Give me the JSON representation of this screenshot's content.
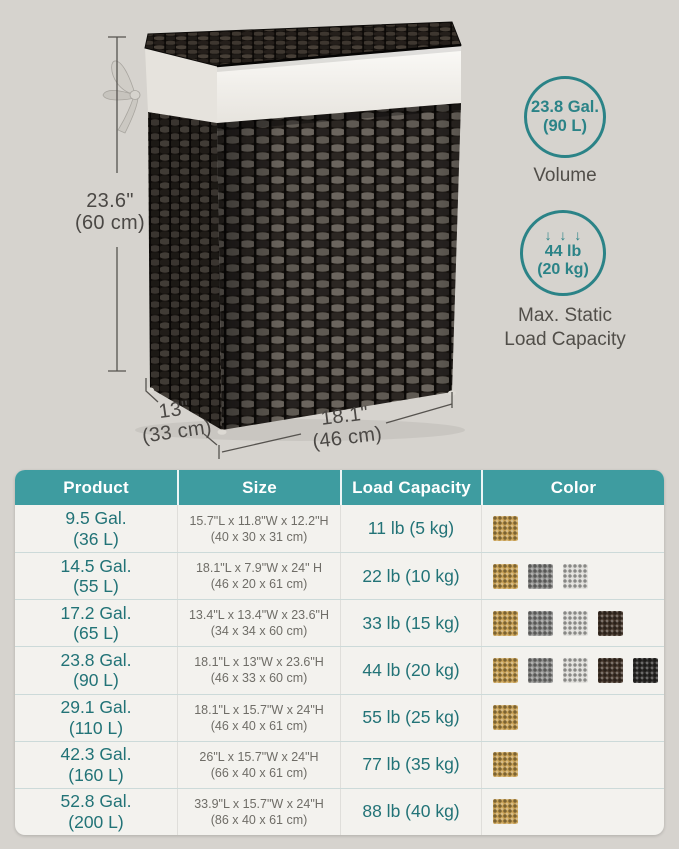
{
  "colors": {
    "page_bg": "#d6d3ce",
    "accent_teal": "#3e9ca0",
    "text_teal": "#227377",
    "badge_teal": "#2b8387",
    "dimension_text": "#4b4845",
    "size_text": "#6f6d67",
    "table_bg": "#f3f2ee"
  },
  "dimensions": {
    "height": {
      "value": "23.6\"",
      "metric": "(60 cm)"
    },
    "depth": {
      "value": "13\"",
      "metric": "(33 cm)"
    },
    "width": {
      "value": "18.1\"",
      "metric": "(46 cm)"
    }
  },
  "badges": {
    "volume": {
      "value": "23.8 Gal.",
      "metric": "(90 L)",
      "label": "Volume"
    },
    "load": {
      "arrows_icon": "↓ ↓ ↓",
      "value": "44 lb",
      "metric": "(20 kg)",
      "label_line1": "Max. Static",
      "label_line2": "Load Capacity"
    }
  },
  "table": {
    "headers": [
      "Product",
      "Size",
      "Load Capacity",
      "Color"
    ],
    "rows": [
      {
        "product": "9.5 Gal.",
        "product_metric": "(36 L)",
        "size_in": "15.7\"L x 11.8\"W x 12.2\"H",
        "size_cm": "(40 x 30 x 31 cm)",
        "load": "11 lb (5 kg)",
        "colors": [
          "camel"
        ]
      },
      {
        "product": "14.5 Gal.",
        "product_metric": "(55 L)",
        "size_in": "18.1\"L x 7.9\"W x 24\" H",
        "size_cm": "(46 x 20 x 61 cm)",
        "load": "22 lb (10 kg)",
        "colors": [
          "camel",
          "gray",
          "light-gray"
        ]
      },
      {
        "product": "17.2 Gal.",
        "product_metric": "(65 L)",
        "size_in": "13.4\"L x 13.4\"W x 23.6\"H",
        "size_cm": "(34 x 34 x 60 cm)",
        "load": "33 lb (15 kg)",
        "colors": [
          "camel",
          "gray",
          "light-gray",
          "brown"
        ]
      },
      {
        "product": "23.8 Gal.",
        "product_metric": "(90 L)",
        "size_in": "18.1\"L x 13\"W x 23.6\"H",
        "size_cm": "(46 x 33 x 60 cm)",
        "load": "44 lb (20 kg)",
        "colors": [
          "camel",
          "gray",
          "light-gray",
          "brown",
          "black"
        ]
      },
      {
        "product": "29.1 Gal.",
        "product_metric": "(110 L)",
        "size_in": "18.1\"L x 15.7\"W x 24\"H",
        "size_cm": "(46 x 40 x 61 cm)",
        "load": "55 lb (25 kg)",
        "colors": [
          "camel"
        ]
      },
      {
        "product": "42.3 Gal.",
        "product_metric": "(160 L)",
        "size_in": "26\"L x 15.7\"W x 24\"H",
        "size_cm": "(66 x 40 x 61 cm)",
        "load": "77 lb (35 kg)",
        "colors": [
          "camel"
        ]
      },
      {
        "product": "52.8 Gal.",
        "product_metric": "(200 L)",
        "size_in": "33.9\"L x 15.7\"W x 24\"H",
        "size_cm": "(86 x 40 x 61 cm)",
        "load": "88 lb (40 kg)",
        "colors": [
          "camel"
        ]
      }
    ]
  },
  "swatch_colors": {
    "camel": "#c79f52",
    "gray": "#8e8e8c",
    "light-gray": "#dcdbd7",
    "brown": "#43352a",
    "black": "#2d2b29"
  }
}
